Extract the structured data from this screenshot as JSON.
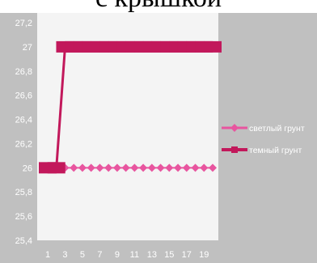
{
  "title": "с крышкой",
  "chart_data": {
    "type": "line",
    "title": "с крышкой",
    "x": [
      1,
      2,
      3,
      4,
      5,
      6,
      7,
      8,
      9,
      10,
      11,
      12,
      13,
      14,
      15,
      16,
      17,
      18,
      19,
      20
    ],
    "x_tick_labels": [
      "1",
      "3",
      "5",
      "7",
      "9",
      "11",
      "13",
      "15",
      "17",
      "19"
    ],
    "ylim": [
      25.4,
      27.2
    ],
    "y_tick_labels": [
      "25,4",
      "25,6",
      "25,8",
      "26",
      "26,2",
      "26,4",
      "26,6",
      "26,8",
      "27",
      "27,2"
    ],
    "y_ticks": [
      25.4,
      25.6,
      25.8,
      26.0,
      26.2,
      26.4,
      26.6,
      26.8,
      27.0,
      27.2
    ],
    "grid": false,
    "legend_position": "right",
    "series": [
      {
        "name": "светлый грунт",
        "color": "#e8559f",
        "marker": "diamond",
        "values": [
          26,
          26,
          26,
          26,
          26,
          26,
          26,
          26,
          26,
          26,
          26,
          26,
          26,
          26,
          26,
          26,
          26,
          26,
          26,
          26
        ]
      },
      {
        "name": "темный грунт",
        "color": "#c2185b",
        "marker": "square",
        "values": [
          26,
          26,
          27,
          27,
          27,
          27,
          27,
          27,
          27,
          27,
          27,
          27,
          27,
          27,
          27,
          27,
          27,
          27,
          27,
          27
        ]
      }
    ],
    "colors": {
      "outer_background": "#c0c0c0",
      "plot_background": "#f4f4f4"
    }
  }
}
